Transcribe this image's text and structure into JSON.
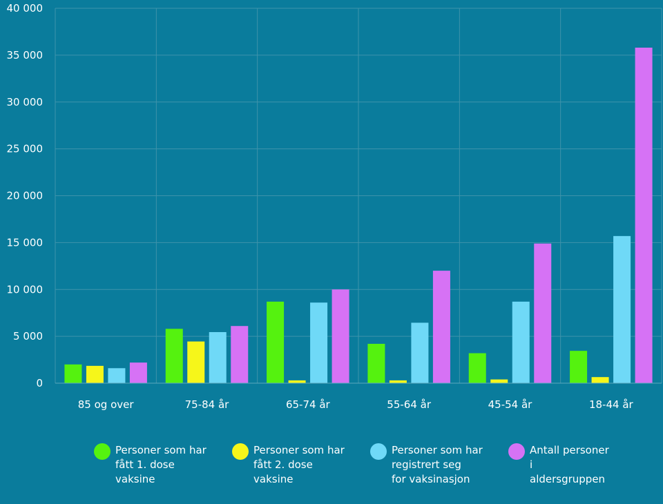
{
  "chart_data": {
    "type": "bar",
    "categories": [
      "85 og over",
      "75-84 år",
      "65-74 år",
      "55-64 år",
      "45-54 år",
      "18-44 år"
    ],
    "series": [
      {
        "name": "Personer som har\nfått 1. dose\nvaksine",
        "color": "#55f20f",
        "values": [
          2000,
          5800,
          8700,
          4200,
          3200,
          3450
        ]
      },
      {
        "name": "Personer som har\nfått 2. dose\nvaksine",
        "color": "#f6f61a",
        "values": [
          1850,
          4450,
          300,
          300,
          400,
          650
        ]
      },
      {
        "name": "Personer som har\nregistrert seg\nfor vaksinasjon",
        "color": "#6fd9f7",
        "values": [
          1600,
          5450,
          8600,
          6450,
          8700,
          15700
        ]
      },
      {
        "name": "Antall personer\ni\naldersgruppen",
        "color": "#d672f5",
        "values": [
          2200,
          6100,
          10000,
          12000,
          14900,
          35800
        ]
      }
    ],
    "ylim": [
      0,
      40000
    ],
    "yticks": [
      0,
      5000,
      10000,
      15000,
      20000,
      25000,
      30000,
      35000,
      40000
    ],
    "ytick_labels": [
      "0",
      "5 000",
      "10 000",
      "15 000",
      "20 000",
      "25 000",
      "30 000",
      "35 000",
      "40 000"
    ],
    "grid": true,
    "legend_position": "bottom"
  }
}
